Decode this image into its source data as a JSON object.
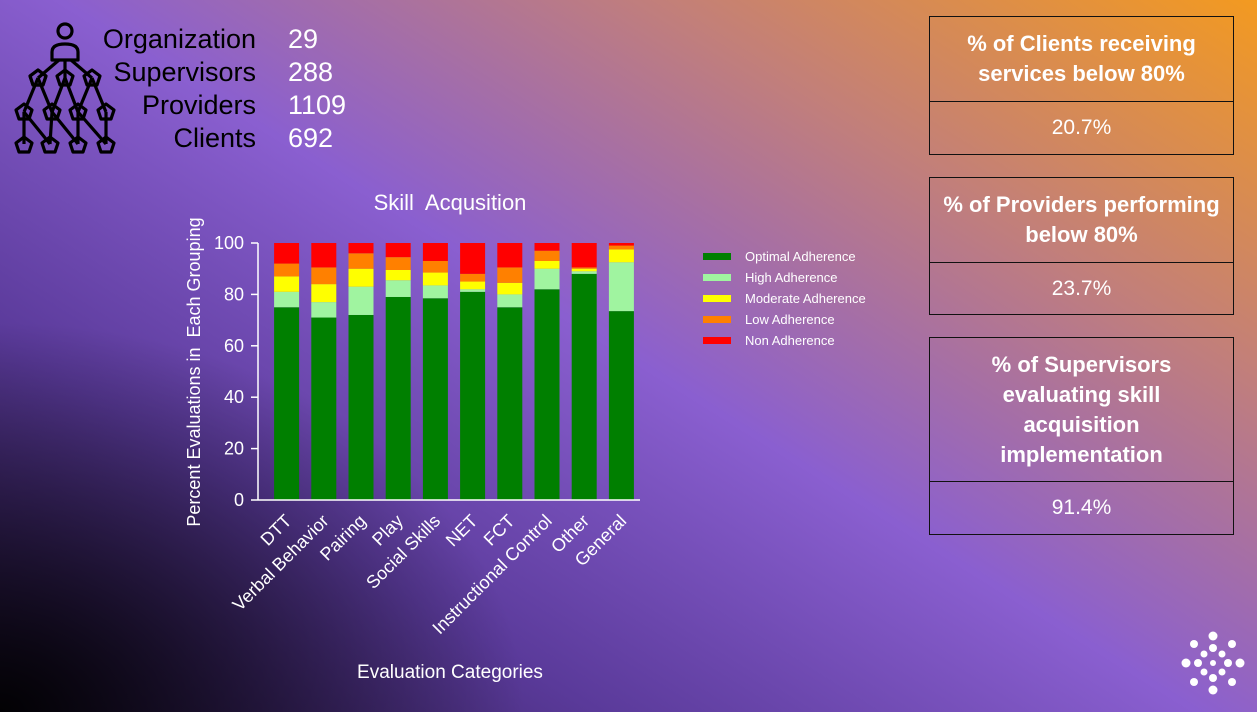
{
  "summary": {
    "items": [
      {
        "label": "Organization",
        "value": "29"
      },
      {
        "label": "Supervisors",
        "value": "288"
      },
      {
        "label": "Providers",
        "value": "1109"
      },
      {
        "label": "Clients",
        "value": "692"
      }
    ]
  },
  "kpis": [
    {
      "title": "% of Clients receiving services below 80%",
      "value": "20.7%"
    },
    {
      "title": "% of Providers performing below 80%",
      "value": "23.7%"
    },
    {
      "title": "% of Supervisors evaluating skill acquisition implementation",
      "value": "91.4%"
    }
  ],
  "icons": {
    "org": "organization-hierarchy-icon",
    "brand": "brand-logo-icon"
  },
  "chart_data": {
    "type": "bar",
    "stacked": true,
    "title": "Skill  Acqusition",
    "xlabel": "Evaluation Categories",
    "ylabel": "Percent Evaluations in  Each Grouping",
    "ylim": [
      0,
      100
    ],
    "yticks": [
      0,
      20,
      40,
      60,
      80,
      100
    ],
    "categories": [
      "DTT",
      "Verbal Behavior",
      "Pairing",
      "Play",
      "Social Skills",
      "NET",
      "FCT",
      "Instructional Control",
      "Other",
      "General"
    ],
    "series": [
      {
        "name": "Optimal Adherence",
        "color": "#007f00",
        "values": [
          75,
          71,
          72,
          79,
          78.5,
          81,
          75,
          82,
          88,
          73.5
        ]
      },
      {
        "name": "High Adherence",
        "color": "#a0f4a0",
        "values": [
          6,
          6,
          11,
          6.5,
          5,
          1,
          5,
          8,
          1,
          19
        ]
      },
      {
        "name": "Moderate Adherence",
        "color": "#ffff00",
        "values": [
          6,
          7,
          7,
          4,
          5,
          3,
          4.5,
          3,
          1,
          5
        ]
      },
      {
        "name": "Low Adherence",
        "color": "#ff8000",
        "values": [
          5,
          6.5,
          6,
          5,
          4.5,
          3,
          6,
          4,
          0.5,
          1.5
        ]
      },
      {
        "name": "Non Adherence",
        "color": "#ff0000",
        "values": [
          8,
          9.5,
          4,
          5.5,
          7,
          12,
          9.5,
          3,
          9.5,
          1
        ]
      }
    ],
    "legend": "right",
    "grid": false
  }
}
